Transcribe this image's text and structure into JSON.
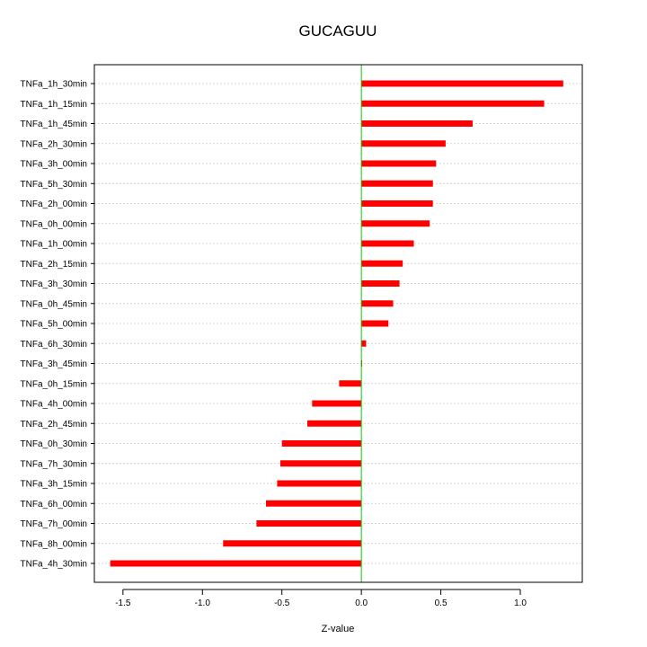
{
  "chart_data": {
    "type": "bar",
    "orientation": "horizontal",
    "title": "GUCAGUU",
    "xlabel": "Z-value",
    "ylabel": "",
    "xlim": [
      -1.68,
      1.39
    ],
    "x_ticks": [
      -1.5,
      -1.0,
      -0.5,
      0.0,
      0.5,
      1.0
    ],
    "x_tick_labels": [
      "-1.5",
      "-1.0",
      "-0.5",
      "0.0",
      "0.5",
      "1.0"
    ],
    "grid": true,
    "reference_line": 0.0,
    "colors": {
      "bar": "#ff0000",
      "reference_line": "#00cc00",
      "grid": "#c8c8c8",
      "frame": "#000000"
    },
    "categories": [
      "TNFa_1h_30min",
      "TNFa_1h_15min",
      "TNFa_1h_45min",
      "TNFa_2h_30min",
      "TNFa_3h_00min",
      "TNFa_5h_30min",
      "TNFa_2h_00min",
      "TNFa_0h_00min",
      "TNFa_1h_00min",
      "TNFa_2h_15min",
      "TNFa_3h_30min",
      "TNFa_0h_45min",
      "TNFa_5h_00min",
      "TNFa_6h_30min",
      "TNFa_3h_45min",
      "TNFa_0h_15min",
      "TNFa_4h_00min",
      "TNFa_2h_45min",
      "TNFa_0h_30min",
      "TNFa_7h_30min",
      "TNFa_3h_15min",
      "TNFa_6h_00min",
      "TNFa_7h_00min",
      "TNFa_8h_00min",
      "TNFa_4h_30min"
    ],
    "values": [
      1.27,
      1.15,
      0.7,
      0.53,
      0.47,
      0.45,
      0.45,
      0.43,
      0.33,
      0.26,
      0.24,
      0.2,
      0.17,
      0.03,
      0.005,
      -0.14,
      -0.31,
      -0.34,
      -0.5,
      -0.51,
      -0.53,
      -0.6,
      -0.66,
      -0.87,
      -1.58
    ]
  }
}
